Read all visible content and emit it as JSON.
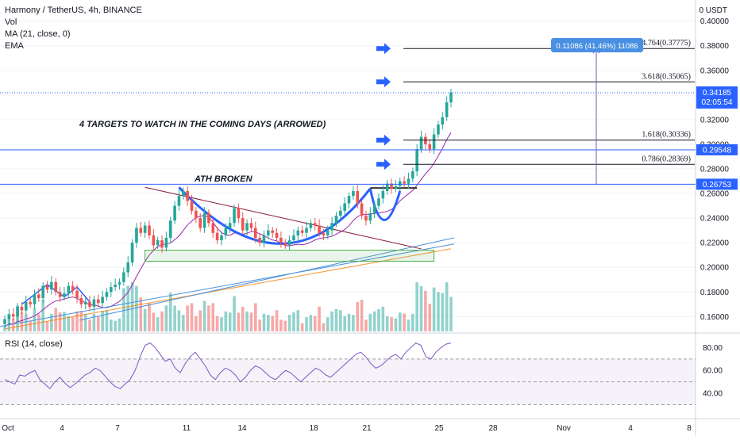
{
  "header": {
    "symbol_line": "Harmony / TetherUS, 4h, BINANCE",
    "indicator_vol": "Vol",
    "indicator_ma": "MA (21, close, 0)",
    "indicator_ema": "EMA",
    "rsi_label": "RSI (14, close)",
    "currency": "0 USDT"
  },
  "colors": {
    "up": "#26a69a",
    "down": "#ef5350",
    "ma": "#9c27b0",
    "ema": "#f57c00",
    "trend_blue": "#2962ff",
    "rsi": "#7e57c2",
    "price_badge": "#2962ff"
  },
  "annotations": {
    "targets_text": "4 TARGETS TO WATCH IN THE COMING DAYS (ARROWED)",
    "ath_text": "ATH BROKEN",
    "measure_text": "0.11086 (41.46%) 11086"
  },
  "price_badges": {
    "current": "0.34185",
    "countdown": "02:05:54",
    "line1": "0.29548",
    "line2": "0.26753"
  },
  "chart_data": [
    {
      "type": "candlestick",
      "title": "Harmony / TetherUS, 4h, BINANCE",
      "y_ticks": [
        "0.40000",
        "0.38000",
        "0.36000",
        "0.34000",
        "0.32000",
        "0.30000",
        "0.28000",
        "0.26000",
        "0.24000",
        "0.22000",
        "0.20000",
        "0.18000",
        "0.16000"
      ],
      "x_ticks": [
        "Oct",
        "4",
        "7",
        "11",
        "14",
        "18",
        "21",
        "25",
        "28",
        "Nov",
        "4",
        "8"
      ],
      "ylim": [
        0.148,
        0.412
      ],
      "fib_levels": [
        {
          "label": "4.764(0.37775)",
          "value": 0.37775
        },
        {
          "label": "3.618(0.35065)",
          "value": 0.35065
        },
        {
          "label": "1.618(0.30336)",
          "value": 0.30336
        },
        {
          "label": "0.786(0.28369)",
          "value": 0.28369
        }
      ],
      "horizontal_lines": [
        0.29548,
        0.26753
      ],
      "last_price": 0.34185,
      "close_series": [
        0.158,
        0.162,
        0.16,
        0.168,
        0.165,
        0.172,
        0.17,
        0.178,
        0.175,
        0.185,
        0.182,
        0.188,
        0.18,
        0.176,
        0.179,
        0.185,
        0.181,
        0.175,
        0.17,
        0.172,
        0.168,
        0.174,
        0.171,
        0.176,
        0.18,
        0.184,
        0.186,
        0.188,
        0.196,
        0.204,
        0.22,
        0.232,
        0.228,
        0.234,
        0.226,
        0.218,
        0.222,
        0.216,
        0.224,
        0.238,
        0.25,
        0.258,
        0.262,
        0.254,
        0.246,
        0.24,
        0.232,
        0.244,
        0.236,
        0.228,
        0.222,
        0.226,
        0.232,
        0.236,
        0.248,
        0.24,
        0.23,
        0.236,
        0.232,
        0.224,
        0.22,
        0.226,
        0.23,
        0.228,
        0.224,
        0.22,
        0.218,
        0.222,
        0.226,
        0.23,
        0.228,
        0.232,
        0.236,
        0.234,
        0.228,
        0.226,
        0.23,
        0.236,
        0.242,
        0.246,
        0.252,
        0.258,
        0.262,
        0.252,
        0.242,
        0.238,
        0.244,
        0.25,
        0.256,
        0.262,
        0.268,
        0.264,
        0.266,
        0.27,
        0.268,
        0.272,
        0.278,
        0.296,
        0.306,
        0.3,
        0.296,
        0.308,
        0.316,
        0.322,
        0.334,
        0.342
      ]
    },
    {
      "type": "line",
      "title": "RSI (14, close)",
      "y_ticks": [
        "80.00",
        "60.00",
        "40.00"
      ],
      "ylim": [
        22,
        90
      ],
      "bands": [
        70,
        50,
        30
      ],
      "values": [
        52,
        50,
        48,
        56,
        55,
        58,
        60,
        52,
        48,
        44,
        50,
        54,
        49,
        45,
        48,
        52,
        56,
        58,
        62,
        60,
        55,
        50,
        46,
        44,
        48,
        52,
        60,
        72,
        82,
        84,
        80,
        74,
        68,
        70,
        62,
        58,
        66,
        72,
        76,
        70,
        64,
        56,
        52,
        58,
        62,
        60,
        56,
        50,
        54,
        60,
        64,
        62,
        58,
        54,
        52,
        56,
        60,
        58,
        54,
        50,
        54,
        58,
        62,
        60,
        56,
        54,
        58,
        62,
        66,
        70,
        74,
        76,
        72,
        66,
        62,
        64,
        68,
        72,
        74,
        70,
        76,
        80,
        84,
        82,
        72,
        70,
        76,
        80,
        83,
        84
      ]
    }
  ]
}
